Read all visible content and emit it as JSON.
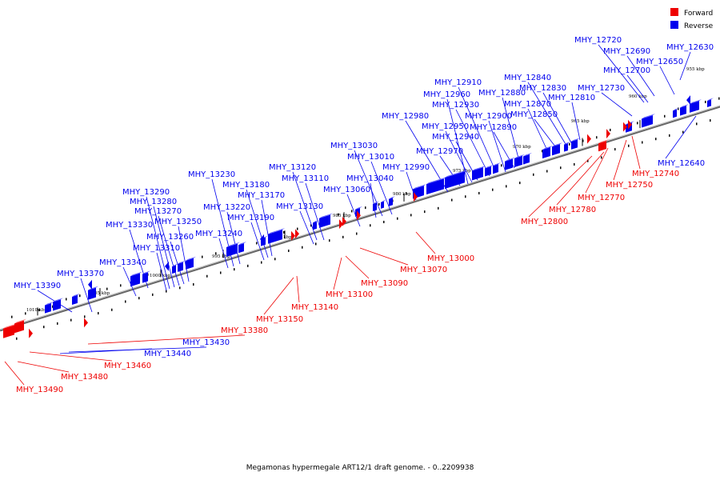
{
  "caption": "Megamonas hypermegale ART12/1 draft genome. - 0..2209938",
  "legend": [
    {
      "label": "Forward",
      "color": "#ee0000"
    },
    {
      "label": "Reverse",
      "color": "#0000ee"
    }
  ],
  "colors": {
    "forward": "#ee0000",
    "reverse": "#0000ee",
    "axis": "#666666"
  },
  "ticks": [
    "955 kbp",
    "960 kbp",
    "965 kbp",
    "970 kbp",
    "975 kbp",
    "980 kbp",
    "985 kbp",
    "990 kbp",
    "995 kbp",
    "1000 kbp",
    "1005 kbp",
    "1010 kbp"
  ],
  "reverse_genes": [
    "MHY_12630",
    "MHY_12640",
    "MHY_12650",
    "MHY_12690",
    "MHY_12700",
    "MHY_12720",
    "MHY_12730",
    "MHY_12810",
    "MHY_12830",
    "MHY_12840",
    "MHY_12850",
    "MHY_12870",
    "MHY_12880",
    "MHY_12890",
    "MHY_12900",
    "MHY_12910",
    "MHY_12930",
    "MHY_12940",
    "MHY_12950",
    "MHY_12960",
    "MHY_12970",
    "MHY_12980",
    "MHY_12990",
    "MHY_13010",
    "MHY_13030",
    "MHY_13040",
    "MHY_13060",
    "MHY_13110",
    "MHY_13120",
    "MHY_13130",
    "MHY_13170",
    "MHY_13180",
    "MHY_13190",
    "MHY_13220",
    "MHY_13230",
    "MHY_13240",
    "MHY_13250",
    "MHY_13260",
    "MHY_13270",
    "MHY_13280",
    "MHY_13290",
    "MHY_13310",
    "MHY_13330",
    "MHY_13340",
    "MHY_13370",
    "MHY_13390",
    "MHY_13430",
    "MHY_13440"
  ],
  "forward_genes": [
    "MHY_12740",
    "MHY_12750",
    "MHY_12770",
    "MHY_12780",
    "MHY_12800",
    "MHY_13000",
    "MHY_13070",
    "MHY_13090",
    "MHY_13100",
    "MHY_13140",
    "MHY_13150",
    "MHY_13380",
    "MHY_13460",
    "MHY_13480",
    "MHY_13490"
  ]
}
